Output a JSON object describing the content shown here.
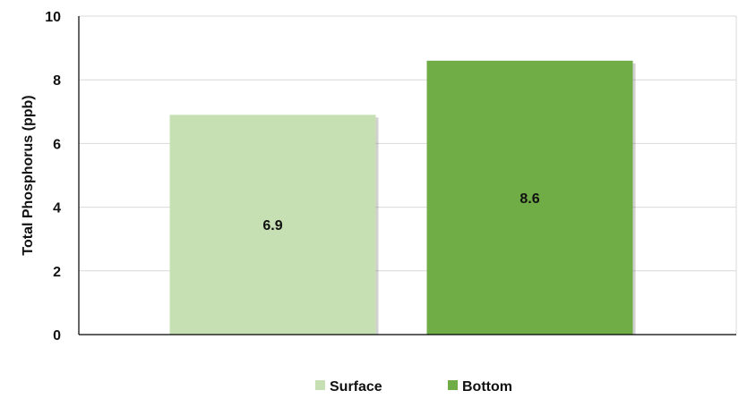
{
  "chart_data": {
    "type": "bar",
    "title": "",
    "xlabel": "",
    "ylabel": "Total Phosphorus (ppb)",
    "ylim": [
      0,
      10
    ],
    "yticks": [
      0,
      2,
      4,
      6,
      8,
      10
    ],
    "grid": true,
    "legend": "bottom",
    "series": [
      {
        "name": "Surface",
        "values": [
          6.9
        ],
        "color": "#c6e0b4"
      },
      {
        "name": "Bottom",
        "values": [
          8.6
        ],
        "color": "#70ad47"
      }
    ],
    "data_labels": [
      "6.9",
      "8.6"
    ]
  }
}
